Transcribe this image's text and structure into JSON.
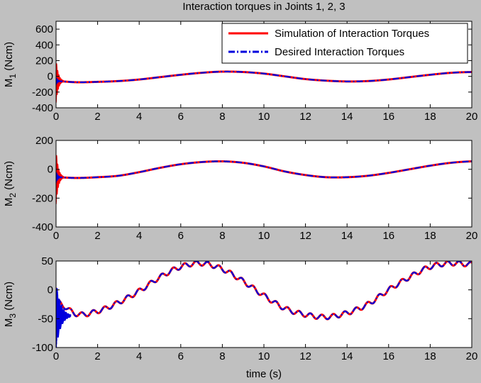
{
  "figure": {
    "title": "Interaction torques in Joints 1, 2, 3",
    "xlabel": "time (s)"
  },
  "legend": {
    "items": [
      {
        "label": "Simulation of Interaction Torques",
        "color": "#ff0000",
        "style": "solid"
      },
      {
        "label": "Desired Interaction Torques",
        "color": "#0000dd",
        "style": "dashdot"
      }
    ],
    "placement": "top-right of first subplot"
  },
  "chart_data": [
    {
      "type": "line",
      "ylabel": "M1 (Ncm)",
      "ylabel_main": "M",
      "ylabel_sub": "1",
      "ylabel_unit": " (Ncm)",
      "xlim": [
        0,
        20
      ],
      "ylim": [
        -400,
        700
      ],
      "xticks": [
        0,
        2,
        4,
        6,
        8,
        10,
        12,
        14,
        16,
        18,
        20
      ],
      "yticks": [
        -400,
        -200,
        0,
        200,
        400,
        600
      ],
      "series": [
        {
          "name": "Simulation of Interaction Torques",
          "x": [
            0,
            1,
            2,
            3,
            4,
            5,
            6,
            7,
            8,
            9,
            10,
            11,
            12,
            13,
            14,
            15,
            16,
            17,
            18,
            19,
            20
          ],
          "y": [
            -60,
            -75,
            -70,
            -60,
            -40,
            -10,
            20,
            45,
            60,
            55,
            35,
            0,
            -35,
            -55,
            -65,
            -60,
            -40,
            -10,
            20,
            45,
            55
          ],
          "transient": {
            "t_end": 0.35,
            "amplitude_max": 280,
            "center": -60
          }
        },
        {
          "name": "Desired Interaction Torques",
          "x": [
            0,
            1,
            2,
            3,
            4,
            5,
            6,
            7,
            8,
            9,
            10,
            11,
            12,
            13,
            14,
            15,
            16,
            17,
            18,
            19,
            20
          ],
          "y": [
            -60,
            -75,
            -70,
            -60,
            -40,
            -10,
            20,
            45,
            60,
            55,
            35,
            0,
            -35,
            -55,
            -65,
            -60,
            -40,
            -10,
            20,
            45,
            55
          ],
          "transient": {
            "t_end": 0.3,
            "amplitude_max": 50,
            "center": -60
          }
        }
      ]
    },
    {
      "type": "line",
      "ylabel": "M2 (Ncm)",
      "ylabel_main": "M",
      "ylabel_sub": "2",
      "ylabel_unit": " (Ncm)",
      "xlim": [
        0,
        20
      ],
      "ylim": [
        -400,
        200
      ],
      "xticks": [
        0,
        2,
        4,
        6,
        8,
        10,
        12,
        14,
        16,
        18,
        20
      ],
      "yticks": [
        -400,
        -200,
        0,
        200
      ],
      "series": [
        {
          "name": "Simulation of Interaction Torques",
          "x": [
            0,
            1,
            2,
            3,
            4,
            5,
            6,
            7,
            8,
            9,
            10,
            11,
            12,
            13,
            14,
            15,
            16,
            17,
            18,
            19,
            20
          ],
          "y": [
            -55,
            -60,
            -55,
            -45,
            -20,
            10,
            35,
            50,
            55,
            45,
            20,
            -15,
            -40,
            -55,
            -55,
            -45,
            -25,
            0,
            25,
            45,
            55
          ],
          "transient": {
            "t_end": 0.35,
            "amplitude_max": 190,
            "center": -55
          }
        },
        {
          "name": "Desired Interaction Torques",
          "x": [
            0,
            1,
            2,
            3,
            4,
            5,
            6,
            7,
            8,
            9,
            10,
            11,
            12,
            13,
            14,
            15,
            16,
            17,
            18,
            19,
            20
          ],
          "y": [
            -55,
            -60,
            -55,
            -45,
            -20,
            10,
            35,
            50,
            55,
            45,
            20,
            -15,
            -40,
            -55,
            -55,
            -45,
            -25,
            0,
            25,
            45,
            55
          ],
          "transient": {
            "t_end": 0.3,
            "amplitude_max": 40,
            "center": -55
          }
        }
      ]
    },
    {
      "type": "line",
      "ylabel": "M3 (Ncm)",
      "ylabel_main": "M",
      "ylabel_sub": "3",
      "ylabel_unit": " (Ncm)",
      "xlim": [
        0,
        20
      ],
      "ylim": [
        -100,
        50
      ],
      "xticks": [
        0,
        2,
        4,
        6,
        8,
        10,
        12,
        14,
        16,
        18,
        20
      ],
      "yticks": [
        -100,
        -50,
        0,
        50
      ],
      "ripple": {
        "amplitude": 4,
        "period": 0.55
      },
      "series": [
        {
          "name": "Simulation of Interaction Torques",
          "x": [
            0,
            1,
            2,
            3,
            4,
            5,
            6,
            7,
            8,
            9,
            10,
            11,
            12,
            13,
            14,
            15,
            16,
            17,
            18,
            19,
            20
          ],
          "y": [
            -20,
            -42,
            -37,
            -22,
            -2,
            22,
            40,
            46,
            36,
            15,
            -10,
            -32,
            -43,
            -47,
            -40,
            -25,
            0,
            22,
            40,
            46,
            44
          ],
          "transient": {
            "t_end": 0.05,
            "amplitude_max": 30,
            "center": -20
          }
        },
        {
          "name": "Desired Interaction Torques",
          "x": [
            0,
            1,
            2,
            3,
            4,
            5,
            6,
            7,
            8,
            9,
            10,
            11,
            12,
            13,
            14,
            15,
            16,
            17,
            18,
            19,
            20
          ],
          "y": [
            -20,
            -42,
            -37,
            -22,
            -2,
            22,
            40,
            46,
            36,
            15,
            -10,
            -32,
            -43,
            -47,
            -40,
            -25,
            0,
            22,
            40,
            46,
            44
          ],
          "transient": {
            "t_end": 0.7,
            "amplitude_max": 60,
            "center": -45
          }
        }
      ]
    }
  ]
}
